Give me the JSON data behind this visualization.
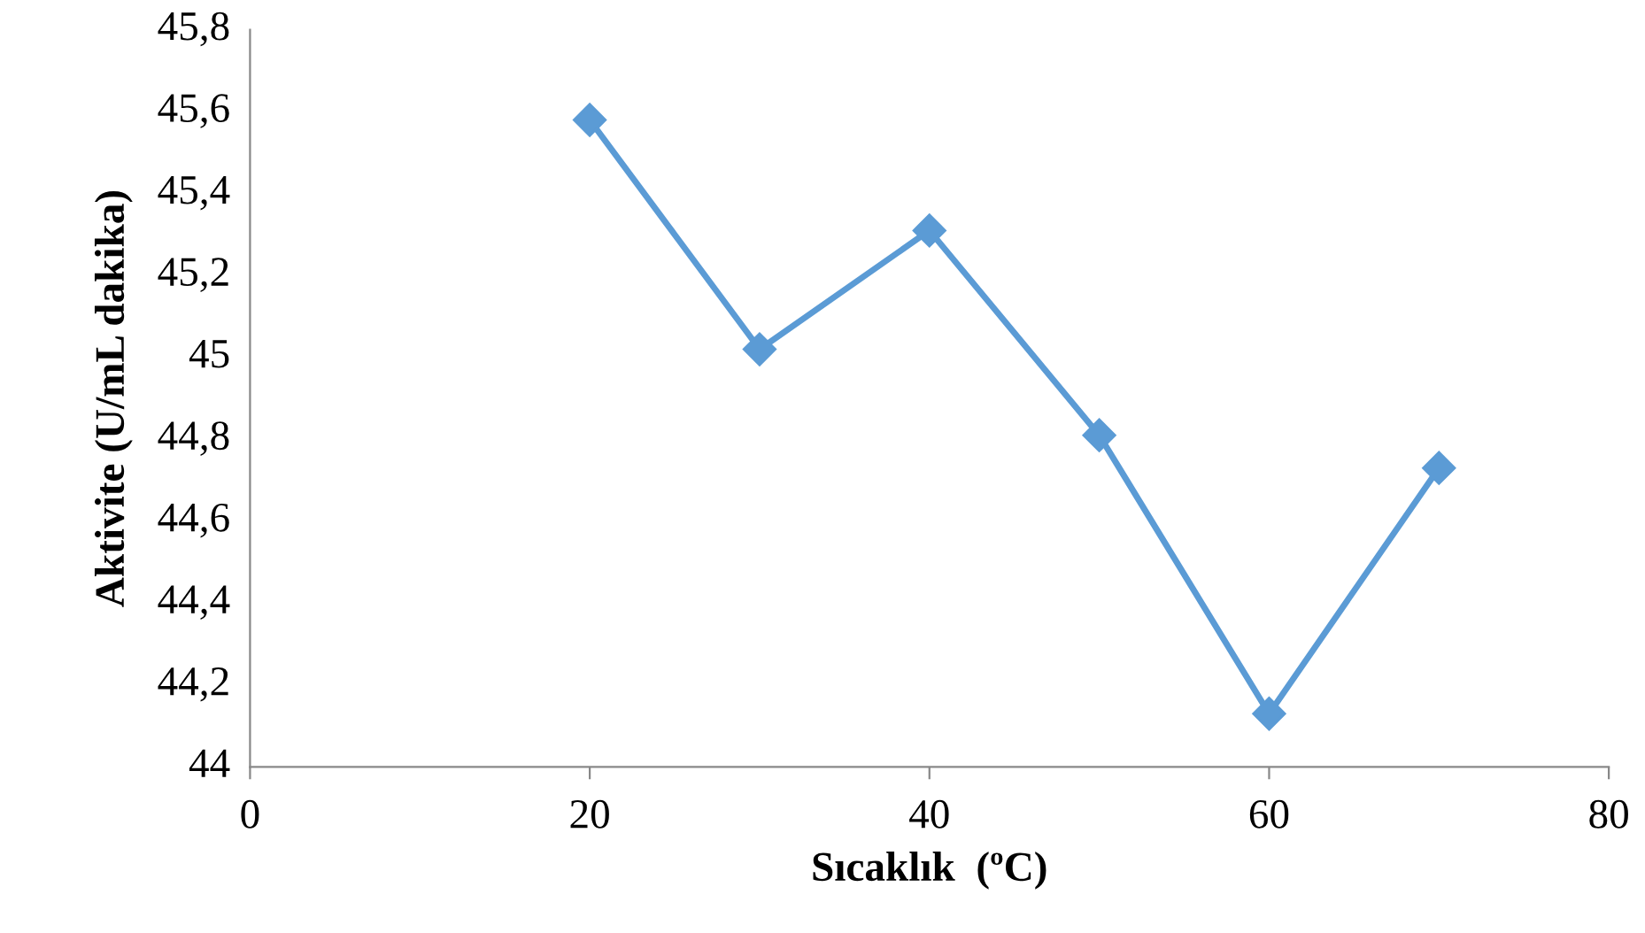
{
  "chart_data": {
    "type": "line",
    "xlabel": "Sıcaklık  (ºC)",
    "ylabel": "Aktivite (U/mL dakika)",
    "x": [
      20,
      30,
      40,
      50,
      60,
      70
    ],
    "series": [
      {
        "color": "#5b9bd5",
        "values": [
          45.58,
          45.02,
          45.31,
          44.81,
          44.13,
          44.73
        ]
      }
    ],
    "marker": "diamond",
    "line_style": "solid",
    "grid": false,
    "legend": false,
    "xlim": [
      0,
      80
    ],
    "xticks": [
      0,
      20,
      40,
      60,
      80
    ],
    "ylim": [
      44,
      45.8
    ],
    "yticks": [
      {
        "value": 44,
        "label": "44"
      },
      {
        "value": 44.2,
        "label": "44,2"
      },
      {
        "value": 44.4,
        "label": "44,4"
      },
      {
        "value": 44.6,
        "label": "44,6"
      },
      {
        "value": 44.8,
        "label": "44,8"
      },
      {
        "value": 45,
        "label": "45"
      },
      {
        "value": 45.2,
        "label": "45,2"
      },
      {
        "value": 45.4,
        "label": "45,4"
      },
      {
        "value": 45.6,
        "label": "45,6"
      },
      {
        "value": 45.8,
        "label": "45,8"
      }
    ]
  }
}
